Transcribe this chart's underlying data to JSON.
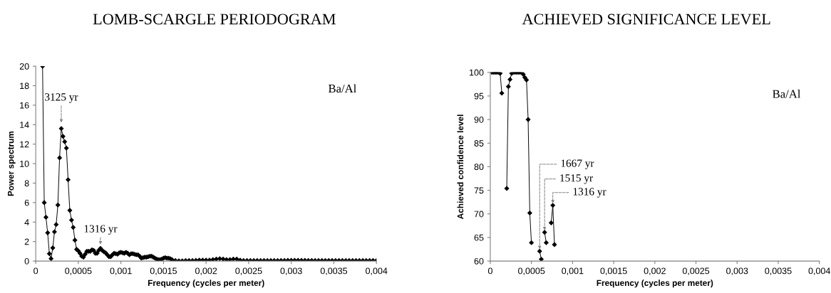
{
  "chart_data": [
    {
      "type": "line",
      "title": "LOMB-SCARGLE PERIODOGRAM",
      "xlabel": "Frequency (cycles per meter)",
      "ylabel": "Power spectrum",
      "marker": "diamond",
      "line_style": "solid",
      "grid": false,
      "legend": false,
      "xlim": [
        0,
        0.004
      ],
      "ylim": [
        0,
        20
      ],
      "xticks": [
        0,
        {
          "value": 0.0005,
          "label": "0,0005"
        },
        {
          "value": 0.001,
          "label": "0,001"
        },
        {
          "value": 0.0015,
          "label": "0,0015"
        },
        {
          "value": 0.002,
          "label": "0,002"
        },
        {
          "value": 0.0025,
          "label": "0,0025"
        },
        {
          "value": 0.003,
          "label": "0,003"
        },
        {
          "value": 0.0035,
          "label": "0,0035"
        },
        {
          "value": 0.004,
          "label": "0,004"
        }
      ],
      "yticks": [
        0,
        2,
        4,
        6,
        8,
        10,
        12,
        14,
        16,
        18,
        20
      ],
      "series": [
        {
          "color": "#000000",
          "x": [
            8e-05,
            0.0001,
            0.00012,
            0.00014,
            0.00016,
            0.00018,
            0.0002,
            0.00022,
            0.00024,
            0.00026,
            0.00028,
            0.0003,
            0.00032,
            0.00034,
            0.00036,
            0.00038,
            0.0004,
            0.00042,
            0.00044,
            0.00046,
            0.00048,
            0.0005,
            0.00052,
            0.00054,
            0.00056,
            0.00058,
            0.0006,
            0.00062,
            0.00064,
            0.00066,
            0.00068,
            0.0007,
            0.00072,
            0.00074,
            0.00076,
            0.00078,
            0.0008,
            0.00082,
            0.00084,
            0.00086,
            0.00088,
            0.0009,
            0.00092,
            0.00094,
            0.00096,
            0.00098,
            0.001,
            0.00102,
            0.00104,
            0.00106,
            0.00108,
            0.0011,
            0.00112,
            0.00114,
            0.00116,
            0.00118,
            0.0012,
            0.00122,
            0.00124,
            0.00126,
            0.00128,
            0.0013,
            0.00132,
            0.00134,
            0.00136,
            0.00138,
            0.0014,
            0.00142,
            0.00144,
            0.00146,
            0.00148,
            0.0015,
            0.00152,
            0.00154,
            0.00156,
            0.00158,
            0.0016,
            0.00164,
            0.00168,
            0.00172,
            0.00176,
            0.0018,
            0.00184,
            0.00188,
            0.00192,
            0.00196,
            0.002,
            0.00204,
            0.00208,
            0.00212,
            0.00216,
            0.0022,
            0.00224,
            0.00228,
            0.00232,
            0.00236,
            0.0024,
            0.00244,
            0.00248,
            0.00252,
            0.00256,
            0.0026,
            0.00264,
            0.00268,
            0.00272,
            0.00276,
            0.0028,
            0.00284,
            0.00288,
            0.00292,
            0.00296,
            0.003,
            0.00304,
            0.00308,
            0.00312,
            0.00316,
            0.0032,
            0.00324,
            0.00328,
            0.00332,
            0.00336,
            0.0034,
            0.00344,
            0.00348,
            0.00352,
            0.00356,
            0.0036,
            0.00364,
            0.00368,
            0.00372,
            0.00376,
            0.0038,
            0.00384,
            0.00388,
            0.00392,
            0.00396,
            0.004
          ],
          "values": [
            20,
            6.0,
            4.5,
            2.9,
            0.75,
            0.25,
            1.35,
            3.0,
            3.75,
            5.75,
            10.6,
            13.6,
            12.8,
            12.25,
            11.6,
            8.35,
            5.2,
            4.2,
            3.45,
            2.15,
            1.2,
            1.05,
            0.8,
            0.5,
            0.4,
            0.7,
            1.0,
            1.0,
            1.0,
            1.15,
            1.1,
            0.8,
            0.8,
            1.1,
            1.3,
            1.1,
            0.95,
            0.85,
            0.65,
            0.45,
            0.45,
            0.65,
            0.8,
            0.75,
            0.7,
            0.85,
            0.9,
            0.85,
            0.8,
            0.9,
            0.8,
            0.65,
            0.75,
            0.75,
            0.7,
            0.65,
            0.65,
            0.5,
            0.3,
            0.35,
            0.4,
            0.4,
            0.45,
            0.5,
            0.5,
            0.4,
            0.3,
            0.2,
            0.15,
            0.15,
            0.2,
            0.3,
            0.35,
            0.3,
            0.3,
            0.25,
            0.15,
            0.05,
            0.03,
            0.03,
            0.05,
            0.05,
            0.05,
            0.07,
            0.1,
            0.1,
            0.1,
            0.1,
            0.15,
            0.2,
            0.25,
            0.2,
            0.15,
            0.15,
            0.2,
            0.2,
            0.1,
            0.05,
            0.05,
            0.05,
            0.05,
            0.05,
            0.05,
            0.05,
            0.05,
            0.05,
            0.05,
            0.05,
            0.06,
            0.06,
            0.07,
            0.08,
            0.08,
            0.08,
            0.07,
            0.07,
            0.06,
            0.06,
            0.05,
            0.05,
            0.05,
            0.05,
            0.05,
            0.05,
            0.05,
            0.05,
            0.05,
            0.05,
            0.05,
            0.05,
            0.05,
            0.05,
            0.05,
            0.05,
            0.05,
            0.05,
            0.05
          ]
        }
      ],
      "annotations": [
        {
          "text": "3125 yr",
          "x": 0.0003,
          "y": 13.6
        },
        {
          "text": "1316 yr",
          "x": 0.00076,
          "y": 1.3
        },
        "Ba/Al"
      ]
    },
    {
      "type": "line",
      "title": "ACHIEVED SIGNIFICANCE LEVEL",
      "xlabel": "Frequency (cycles per meter)",
      "ylabel": "Achieved confidence level",
      "marker": "diamond",
      "line_style": "solid",
      "grid": false,
      "legend": false,
      "xlim": [
        0,
        0.004
      ],
      "ylim": [
        60,
        100
      ],
      "xticks": [
        0,
        {
          "value": 0.0005,
          "label": "0,0005"
        },
        {
          "value": 0.001,
          "label": "0,001"
        },
        {
          "value": 0.0015,
          "label": "0,0015"
        },
        {
          "value": 0.002,
          "label": "0,002"
        },
        {
          "value": 0.0025,
          "label": "0,0025"
        },
        {
          "value": 0.003,
          "label": "0,003"
        },
        {
          "value": 0.0035,
          "label": "0,0035"
        },
        {
          "value": 0.004,
          "label": "0,004"
        }
      ],
      "yticks": [
        60,
        65,
        70,
        75,
        80,
        85,
        90,
        95,
        100
      ],
      "series": [
        {
          "color": "#000000",
          "x": [
            2e-05,
            4e-05,
            6e-05,
            8e-05,
            0.0001,
            0.00012,
            0.00014,
            0.00016,
            0.00018,
            0.0002,
            0.00022,
            0.00024,
            0.00026,
            0.00028,
            0.0003,
            0.00032,
            0.00034,
            0.00036,
            0.00038,
            0.0004,
            0.00042,
            0.00044,
            0.00046,
            0.00048,
            0.0005,
            0.00052,
            0.00054,
            0.00056,
            0.00058,
            0.0006,
            0.00062,
            0.00064,
            0.00066,
            0.00068,
            0.0007,
            0.00072,
            0.00074,
            0.00076,
            0.00078
          ],
          "values": [
            100,
            100,
            100,
            100,
            100,
            99.8,
            95.6,
            null,
            null,
            75.4,
            97.0,
            98.5,
            99.8,
            100,
            100,
            100,
            100,
            100,
            100,
            99.6,
            98.9,
            98.4,
            90.0,
            70.2,
            63.9,
            null,
            null,
            null,
            null,
            62.1,
            60.4,
            null,
            66.1,
            63.9,
            null,
            null,
            68.1,
            71.8,
            63.5
          ]
        }
      ],
      "annotations": [
        {
          "text": "1667 yr",
          "x": 0.0006,
          "y": 62.1
        },
        {
          "text": "1515 yr",
          "x": 0.00066,
          "y": 66.1
        },
        {
          "text": "1316 yr",
          "x": 0.00076,
          "y": 71.8
        },
        "Ba/Al"
      ]
    }
  ]
}
